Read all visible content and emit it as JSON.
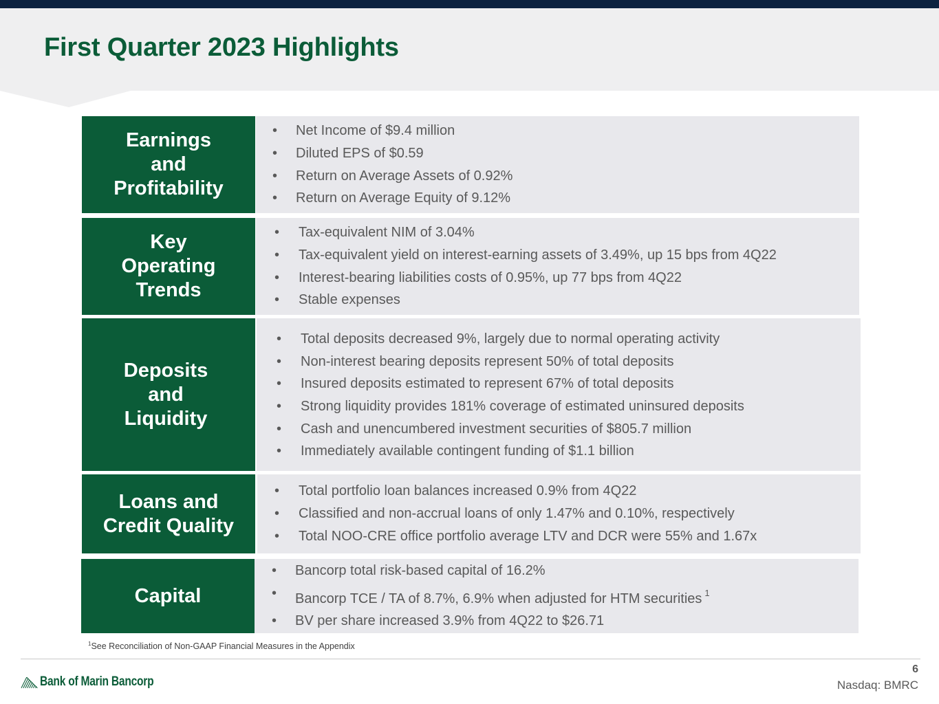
{
  "slide": {
    "title": "First Quarter 2023 Highlights",
    "page_number": "6",
    "ticker": "Nasdaq: BMRC",
    "logo_text": "Bank of Marin Bancorp",
    "footnote_marker": "1",
    "footnote_text": "See Reconciliation of Non-GAAP Financial Measures in the Appendix"
  },
  "sections": [
    {
      "label_lines": [
        "Earnings",
        "and",
        "Profitability"
      ],
      "bullets": [
        "Net Income of $9.4 million",
        "Diluted EPS of $0.59",
        "Return on Average Assets of 0.92%",
        "Return on Average Equity of 9.12%"
      ]
    },
    {
      "label_lines": [
        "Key",
        "Operating",
        "Trends"
      ],
      "bullets": [
        "Tax-equivalent NIM of 3.04%",
        "Tax-equivalent yield on interest-earning assets of 3.49%, up 15 bps from 4Q22",
        "Interest-bearing liabilities costs of 0.95%, up 77 bps from 4Q22",
        "Stable expenses"
      ]
    },
    {
      "label_lines": [
        "Deposits",
        "and",
        "Liquidity"
      ],
      "bullets": [
        "Total deposits decreased 9%, largely due to normal operating activity",
        "Non-interest bearing deposits represent 50% of total deposits",
        "Insured deposits estimated to represent 67% of total deposits",
        "Strong liquidity provides 181% coverage of estimated uninsured deposits",
        "Cash and unencumbered investment securities of $805.7 million",
        "Immediately available contingent funding of $1.1 billion"
      ]
    },
    {
      "label_lines": [
        "Loans and",
        "Credit Quality"
      ],
      "bullets": [
        "Total portfolio loan balances increased 0.9% from 4Q22",
        "Classified and non-accrual loans of only 1.47% and 0.10%, respectively",
        "Total NOO-CRE office portfolio average LTV and DCR were 55% and 1.67x"
      ]
    },
    {
      "label_lines": [
        "Capital"
      ],
      "bullets": [
        "Bancorp total risk-based capital of 16.2%",
        "Bancorp TCE / TA of 8.7%, 6.9% when adjusted for HTM securities",
        "BV per share increased 3.9% from 4Q22 to $26.71"
      ],
      "bullet_footnote_marker": "1"
    }
  ]
}
